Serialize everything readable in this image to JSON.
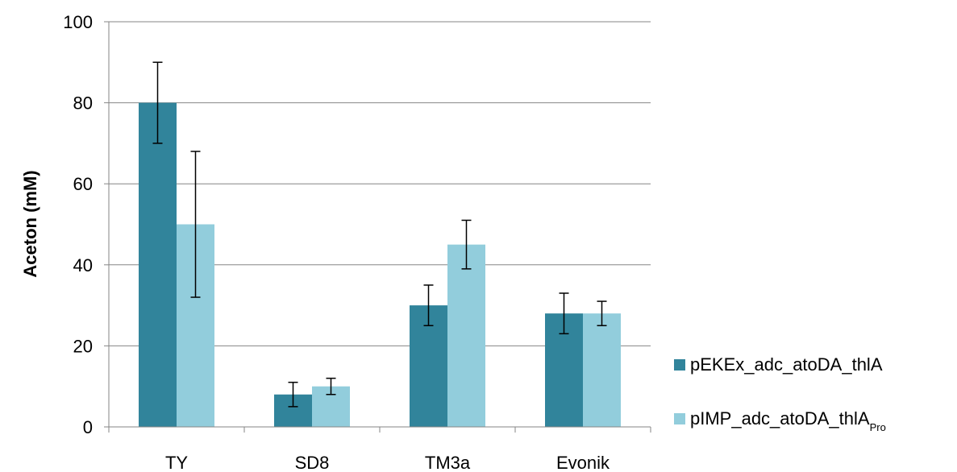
{
  "chart_data": {
    "type": "bar",
    "categories": [
      "TY",
      "SD8",
      "TM3a",
      "Evonik"
    ],
    "ylabel": "Aceton (mM)",
    "xlabel": "",
    "ylim": [
      0,
      100
    ],
    "yticks": [
      0,
      20,
      40,
      60,
      80,
      100
    ],
    "grid": true,
    "legend_position": "right",
    "series": [
      {
        "name": "pEKEx_adc_atoDA_thlA",
        "color": "#31849B",
        "values": [
          80,
          8,
          30,
          28
        ],
        "error": [
          10,
          3,
          5,
          5
        ]
      },
      {
        "name": "pIMP_adc_atoDA_thlA",
        "name_subscript": "Pro",
        "color": "#92CDDC",
        "values": [
          50,
          10,
          45,
          28
        ],
        "error": [
          18,
          2,
          6,
          3
        ]
      }
    ]
  }
}
